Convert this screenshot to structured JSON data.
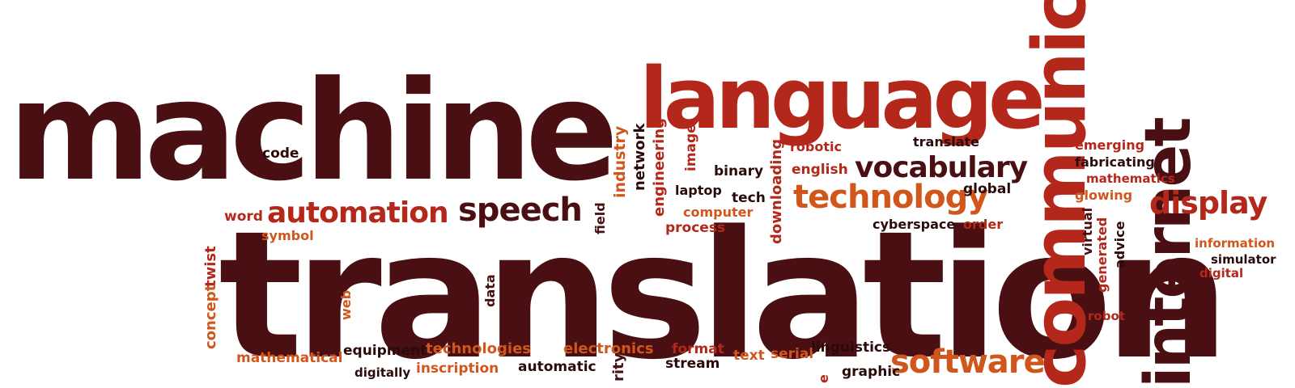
{
  "palette": {
    "dark": "#4a0f12",
    "red": "#b3281a",
    "orange": "#d1561b",
    "black": "#2a0a0a",
    "background": "#ffffff"
  },
  "words": {
    "machine": "machine",
    "language": "language",
    "translation": "translation",
    "communication": "communication",
    "internet": "internet",
    "automation": "automation",
    "speech": "speech",
    "technology": "technology",
    "vocabulary": "vocabulary",
    "software": "software",
    "display": "display",
    "code": "code",
    "word": "word",
    "symbol": "symbol",
    "concept": "concept",
    "twist": "twist",
    "web": "web",
    "data": "data",
    "field": "field",
    "industry": "industry",
    "network": "network",
    "engineering": "engineering",
    "image": "image",
    "binary": "binary",
    "laptop": "laptop",
    "tech": "tech",
    "computer": "computer",
    "process": "process",
    "downloading": "downloading",
    "robotic": "robotic",
    "english": "english",
    "translate": "translate",
    "global": "global",
    "cyberspace": "cyberspace",
    "order": "order",
    "emerging": "emerging",
    "fabricating": "fabricating",
    "mathematics": "mathematics",
    "glowing": "glowing",
    "virtual": "virtual",
    "generated": "generated",
    "advice": "advice",
    "information": "information",
    "simulator": "simulator",
    "digital": "digital",
    "robot": "robot",
    "mathematical": "mathematical",
    "equipment": "equipment",
    "technologies": "technologies",
    "digitally": "digitally",
    "inscription": "inscription",
    "automatic": "automatic",
    "electronics": "electronics",
    "rity": "rity",
    "format": "format",
    "stream": "stream",
    "text": "text",
    "serial": "serial",
    "linguistics": "linguistics",
    "graphic": "graphic",
    "e_fragment": "e"
  }
}
